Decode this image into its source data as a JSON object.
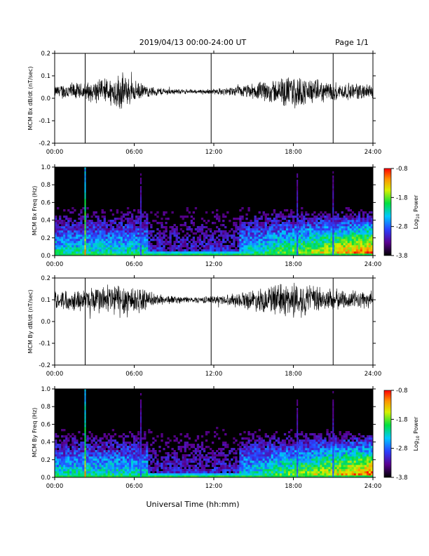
{
  "page": {
    "title": "2019/04/13  00:00-24:00 UT",
    "page_label": "Page 1/1",
    "xlabel": "Universal Time (hh:mm)"
  },
  "chart_data": [
    {
      "type": "line",
      "ylabel": "MCM Bx dB/dt (nT/sec)",
      "xlim": [
        0,
        24
      ],
      "ylim": [
        -0.2,
        0.2
      ],
      "xticks": [
        "00:00",
        "06:00",
        "12:00",
        "18:00",
        "24:00"
      ],
      "yticks": [
        "-0.2",
        "-0.1",
        "0.0",
        "0.1",
        "0.2"
      ],
      "baseline": 0.03,
      "markers_hours": [
        2.3,
        11.8,
        21.0
      ],
      "envelope": {
        "x": [
          0,
          1,
          2,
          3,
          4,
          5,
          6,
          7,
          8,
          9,
          10,
          11,
          12,
          13,
          14,
          15,
          16,
          17,
          18,
          19,
          20,
          21,
          22,
          23,
          24
        ],
        "amp": [
          0.02,
          0.035,
          0.03,
          0.04,
          0.05,
          0.07,
          0.04,
          0.02,
          0.015,
          0.01,
          0.008,
          0.008,
          0.01,
          0.015,
          0.02,
          0.03,
          0.04,
          0.05,
          0.06,
          0.05,
          0.04,
          0.035,
          0.03,
          0.03,
          0.025
        ]
      }
    },
    {
      "type": "heatmap",
      "ylabel": "MCM Bx Freq (Hz)",
      "xlim": [
        0,
        24
      ],
      "ylim": [
        0,
        1.0
      ],
      "xticks": [
        "00:00",
        "06:00",
        "12:00",
        "18:00",
        "24:00"
      ],
      "yticks": [
        "0.0",
        "0.2",
        "0.4",
        "0.6",
        "0.8",
        "1.0"
      ],
      "colorbar": {
        "label_prefix": "Log",
        "label_sub": "10",
        "label_suffix": " Power",
        "range": [
          -3.8,
          -0.8
        ],
        "ticks": [
          "-0.8",
          "-1.8",
          "-2.8",
          "-3.8"
        ]
      },
      "bright_lines_hours": [
        2.3,
        6.5,
        18.3,
        21.0
      ]
    },
    {
      "type": "line",
      "ylabel": "MCM By dB/dt (nT/sec)",
      "xlim": [
        0,
        24
      ],
      "ylim": [
        -0.2,
        0.2
      ],
      "xticks": [
        "00:00",
        "06:00",
        "12:00",
        "18:00",
        "24:00"
      ],
      "yticks": [
        "-0.2",
        "-0.1",
        "0.0",
        "0.1",
        "0.2"
      ],
      "baseline": 0.1,
      "markers_hours": [
        2.3,
        11.8,
        21.0
      ],
      "envelope": {
        "x": [
          0,
          1,
          2,
          3,
          4,
          5,
          6,
          7,
          8,
          9,
          10,
          11,
          12,
          13,
          14,
          15,
          16,
          17,
          18,
          19,
          20,
          21,
          22,
          23,
          24
        ],
        "amp": [
          0.03,
          0.04,
          0.04,
          0.05,
          0.06,
          0.07,
          0.06,
          0.03,
          0.02,
          0.015,
          0.012,
          0.012,
          0.015,
          0.02,
          0.03,
          0.04,
          0.05,
          0.06,
          0.07,
          0.06,
          0.05,
          0.04,
          0.035,
          0.035,
          0.03
        ]
      }
    },
    {
      "type": "heatmap",
      "ylabel": "MCM By Freq (Hz)",
      "xlim": [
        0,
        24
      ],
      "ylim": [
        0,
        1.0
      ],
      "xticks": [
        "00:00",
        "06:00",
        "12:00",
        "18:00",
        "24:00"
      ],
      "yticks": [
        "0.0",
        "0.2",
        "0.4",
        "0.6",
        "0.8",
        "1.0"
      ],
      "colorbar": {
        "label_prefix": "Log",
        "label_sub": "10",
        "label_suffix": " Power",
        "range": [
          -3.8,
          -0.8
        ],
        "ticks": [
          "-0.8",
          "-1.8",
          "-2.8",
          "-3.8"
        ]
      },
      "bright_lines_hours": [
        2.3,
        6.5,
        18.3,
        21.0
      ]
    }
  ]
}
